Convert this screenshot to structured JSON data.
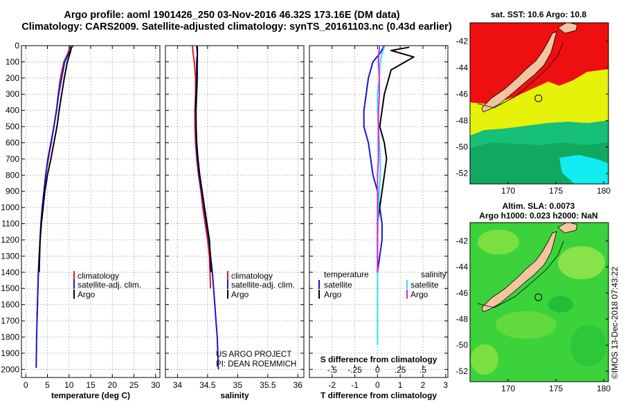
{
  "header": {
    "title_line1": "Argo profile: aoml 1901426_250 03-Nov-2016 46.32S 173.16E (DM data)",
    "title_line2": "Climatology: CARS2009. Satellite-adjusted climatology: synTS_20161103.nc (0.43d earlier)"
  },
  "colors": {
    "climatology": "#e8141c",
    "satellite": "#1414d8",
    "argo": "#000000",
    "s_satellite": "#20e8f0",
    "s_argo": "#e020e0"
  },
  "chart_data": [
    {
      "type": "line",
      "xlabel": "temperature (deg C)",
      "xlim": [
        -1,
        31
      ],
      "xticks": [
        0,
        5,
        10,
        15,
        20,
        25,
        30
      ],
      "ylim": [
        2050,
        0
      ],
      "yticks": [
        0,
        100,
        200,
        300,
        400,
        500,
        600,
        700,
        800,
        900,
        1000,
        1100,
        1200,
        1300,
        1400,
        1500,
        1600,
        1700,
        1800,
        1900,
        2000
      ],
      "legend": [
        "climatology",
        "satellite-adj. clim.",
        "Argo"
      ],
      "series": [
        {
          "name": "climatology",
          "color": "#e8141c",
          "x": [
            10.3,
            9.7,
            8.8,
            8.0,
            7.5,
            7.1,
            6.5,
            5.9,
            5.2,
            4.6,
            4.2,
            3.8,
            3.5,
            3.3,
            3.1,
            2.9,
            2.8,
            2.7,
            2.6
          ],
          "y": [
            0,
            50,
            100,
            200,
            300,
            400,
            500,
            600,
            700,
            800,
            900,
            1000,
            1100,
            1200,
            1300,
            1400,
            1500,
            1600,
            1700
          ]
        },
        {
          "name": "satellite-adj. clim.",
          "color": "#1414d8",
          "x": [
            10.9,
            10.4,
            9.9,
            9.0,
            8.3,
            7.6,
            7.1,
            6.5,
            5.8,
            5.1,
            4.6,
            4.2,
            3.8,
            3.5,
            3.3,
            3.1,
            2.9,
            2.8,
            2.7,
            2.6,
            2.5,
            2.4
          ],
          "y": [
            0,
            20,
            50,
            100,
            200,
            300,
            400,
            500,
            600,
            700,
            800,
            900,
            1000,
            1100,
            1200,
            1300,
            1400,
            1500,
            1600,
            1700,
            1800,
            1990
          ]
        },
        {
          "name": "Argo",
          "color": "#000000",
          "x": [
            10.6,
            10.3,
            9.6,
            8.9,
            8.3,
            7.7,
            7.2,
            6.5,
            5.8,
            5.0,
            4.4,
            4.0,
            3.6,
            3.3,
            3.1
          ],
          "y": [
            5,
            40,
            100,
            200,
            300,
            400,
            500,
            600,
            700,
            800,
            900,
            1000,
            1100,
            1200,
            1400
          ]
        }
      ]
    },
    {
      "type": "line",
      "xlabel": "salinity",
      "xlim": [
        33.8,
        36.1
      ],
      "xticks": [
        34,
        34.5,
        35,
        35.5,
        36
      ],
      "ylim": [
        2050,
        0
      ],
      "legend": [
        "climatology",
        "satellite-adj. clim.",
        "Argo"
      ],
      "annotation": [
        "US ARGO PROJECT",
        "PI: DEAN ROEMMICH"
      ],
      "series": [
        {
          "name": "climatology",
          "color": "#e8141c",
          "x": [
            34.25,
            34.26,
            34.28,
            34.3,
            34.3,
            34.29,
            34.29,
            34.3,
            34.32,
            34.35,
            34.39,
            34.42,
            34.46,
            34.5,
            34.53,
            34.55
          ],
          "y": [
            0,
            50,
            100,
            200,
            300,
            400,
            500,
            600,
            700,
            800,
            900,
            1000,
            1100,
            1200,
            1300,
            1500
          ]
        },
        {
          "name": "satellite-adj. clim.",
          "color": "#1414d8",
          "x": [
            34.32,
            34.33,
            34.33,
            34.33,
            34.32,
            34.31,
            34.31,
            34.31,
            34.33,
            34.36,
            34.4,
            34.44,
            34.48,
            34.52,
            34.55,
            34.58,
            34.6,
            34.62,
            34.64,
            34.66,
            34.68
          ],
          "y": [
            0,
            50,
            100,
            200,
            300,
            400,
            500,
            600,
            700,
            800,
            900,
            1000,
            1100,
            1200,
            1300,
            1400,
            1500,
            1600,
            1700,
            1800,
            2000
          ]
        },
        {
          "name": "Argo",
          "color": "#000000",
          "x": [
            34.33,
            34.33,
            34.32,
            34.32,
            34.31,
            34.3,
            34.31,
            34.32,
            34.34,
            34.37,
            34.41,
            34.45,
            34.49,
            34.53,
            34.56
          ],
          "y": [
            5,
            50,
            100,
            200,
            300,
            400,
            500,
            600,
            700,
            800,
            900,
            1000,
            1100,
            1200,
            1400
          ]
        }
      ]
    },
    {
      "type": "line",
      "xlabel": "T difference from climatology",
      "xlim": [
        -3,
        3.1
      ],
      "xticks": [
        -2,
        -1,
        0,
        1,
        2,
        3
      ],
      "secondary_xlabel": "S difference from climatology",
      "secondary_xlim": [
        -0.75,
        0.775
      ],
      "secondary_xticks": [
        -0.5,
        -0.25,
        0,
        0.25,
        0.5
      ],
      "ylim": [
        2050,
        0
      ],
      "legend_title_left": "temperature",
      "legend_title_right": "salinity",
      "legend": [
        "satellite",
        "Argo"
      ],
      "series": [
        {
          "name": "T satellite",
          "color": "#1414d8",
          "x": [
            0.3,
            0.1,
            -0.2,
            -0.4,
            -0.5,
            -0.6,
            -0.6,
            -0.4,
            -0.3,
            -0.2,
            0.0,
            0.1,
            0.2,
            0.2,
            0.1,
            0.0
          ],
          "y": [
            0,
            50,
            100,
            200,
            300,
            400,
            500,
            600,
            700,
            800,
            900,
            1000,
            1100,
            1200,
            1300,
            1400
          ]
        },
        {
          "name": "T Argo",
          "color": "#000000",
          "x": [
            1.4,
            0.6,
            1.6,
            0.6,
            0.3,
            0.2,
            0.1,
            0.3,
            0.4,
            0.3,
            0.2,
            0.1,
            0.0,
            0.0,
            0.0
          ],
          "y": [
            10,
            30,
            70,
            150,
            300,
            400,
            500,
            600,
            700,
            800,
            900,
            1000,
            1100,
            1200,
            1400
          ]
        },
        {
          "name": "S satellite",
          "color": "#20e8f0",
          "x": [
            0.08,
            0.05,
            0.03,
            0.02,
            0.0,
            0.0,
            0.01,
            0.02,
            0.03,
            0.03,
            0.02,
            0.01,
            0.0,
            0.0,
            0.0,
            0.0
          ],
          "y": [
            0,
            50,
            100,
            200,
            300,
            400,
            500,
            600,
            700,
            800,
            900,
            1000,
            1200,
            1400,
            1600,
            1850
          ]
        },
        {
          "name": "S Argo",
          "color": "#e020e0",
          "x": [
            0.02,
            0.01,
            0.02,
            0.02,
            0.01,
            0.01,
            0.01,
            0.01,
            0.0,
            0.0,
            0.0
          ],
          "y": [
            5,
            100,
            200,
            300,
            400,
            500,
            600,
            700,
            800,
            1000,
            1400
          ]
        }
      ]
    }
  ],
  "maps": {
    "sst": {
      "title": "sat. SST: 10.6 Argo: 10.8",
      "xticks": [
        170,
        175,
        180
      ],
      "yticks": [
        -42,
        -44,
        -46,
        -48,
        -50,
        -52
      ],
      "xlim": [
        166,
        180.5
      ],
      "ylim": [
        -52.8,
        -40.6
      ],
      "profile_lon": 173.16,
      "profile_lat": -46.32
    },
    "sla": {
      "title_line1": "Altim. SLA: 0.0073",
      "title_line2": "Argo h1000: 0.023 h2000: NaN",
      "xticks": [
        170,
        175,
        180
      ],
      "yticks": [
        -42,
        -44,
        -46,
        -48,
        -50,
        -52
      ],
      "xlim": [
        166,
        180.5
      ],
      "ylim": [
        -52.8,
        -40.6
      ],
      "profile_lon": 173.16,
      "profile_lat": -46.32
    }
  },
  "credit": "©IMOS 13-Dec-2018 07:43:22"
}
